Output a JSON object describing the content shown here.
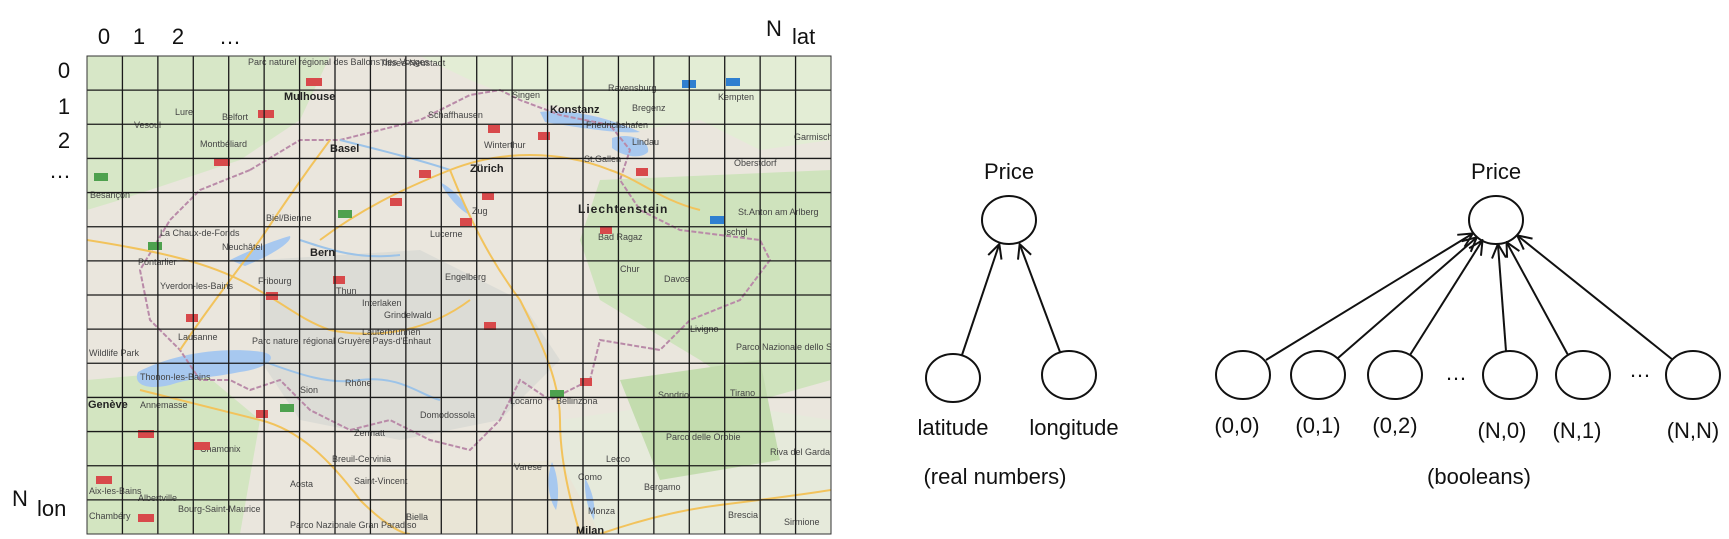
{
  "grid": {
    "col_labels": [
      "0",
      "1",
      "2",
      "…"
    ],
    "row_labels": [
      "0",
      "1",
      "2",
      "…"
    ],
    "n_lat": "N",
    "n_lat_sub": "lat",
    "n_lon": "N",
    "n_lon_sub": "lon"
  },
  "map": {
    "places": [
      "Mulhouse",
      "Basel",
      "Belfort",
      "Montbéliard",
      "Vesoul",
      "Besançon",
      "Schaffhausen",
      "Singen",
      "Konstanz",
      "Ravensburg",
      "Kempten",
      "Winterthur",
      "Friedrichshafen",
      "Lindau",
      "St.Gallen",
      "Zürich",
      "Zug",
      "Liechtenstein",
      "Biel/Bienne",
      "La Chaux-de-Fonds",
      "Neuchâtel",
      "Bern",
      "Lucerne",
      "Chur",
      "Davos",
      "Fribourg",
      "Thun",
      "Interlaken",
      "Yverdon-les-Bains",
      "Pontarlier",
      "Lausanne",
      "Genève",
      "Thonon-les-Bains",
      "Annemasse",
      "Sion",
      "Zermatt",
      "Domodossola",
      "Locarno",
      "Bellinzona",
      "Sondrio",
      "Tirano",
      "Lecco",
      "Varese",
      "Como",
      "Bergamo",
      "Monza",
      "Milan",
      "Brescia",
      "Biella",
      "Aosta",
      "Chamonix",
      "Albertville",
      "Bourg-Saint-Maurice",
      "Engelberg",
      "Grindelwald",
      "Lauterbrunnen",
      "Oberstdorf",
      "St.Anton am Arlberg",
      "Ischgl",
      "Bad Ragaz",
      "Livigno",
      "Riva del Garda",
      "Parco Nazionale dello Stelvio",
      "Wildlife Park",
      "Parc naturel régional Gruyère Pays-d'Enhaut",
      "Rhône",
      "Garmisch",
      "Titisee-Neustadt",
      "Parco delle Orobie",
      "Aix-les-Bains",
      "Chambéry",
      "Sirmione",
      "Bregenz",
      "Parc naturel régional des Ballons des Vosges",
      "Lure",
      "Breuil-Cervinia",
      "Saint-Vincent",
      "Parco Nazionale Gran Paradiso"
    ]
  },
  "diagram_left": {
    "output": "Price",
    "inputs": [
      "latitude",
      "longitude"
    ],
    "caption": "(real numbers)"
  },
  "diagram_right": {
    "output": "Price",
    "inputs": [
      "(0,0)",
      "(0,1)",
      "(0,2)",
      "(N,0)",
      "(N,1)",
      "(N,N)"
    ],
    "ellipsis": "…",
    "caption": "(booleans)"
  }
}
